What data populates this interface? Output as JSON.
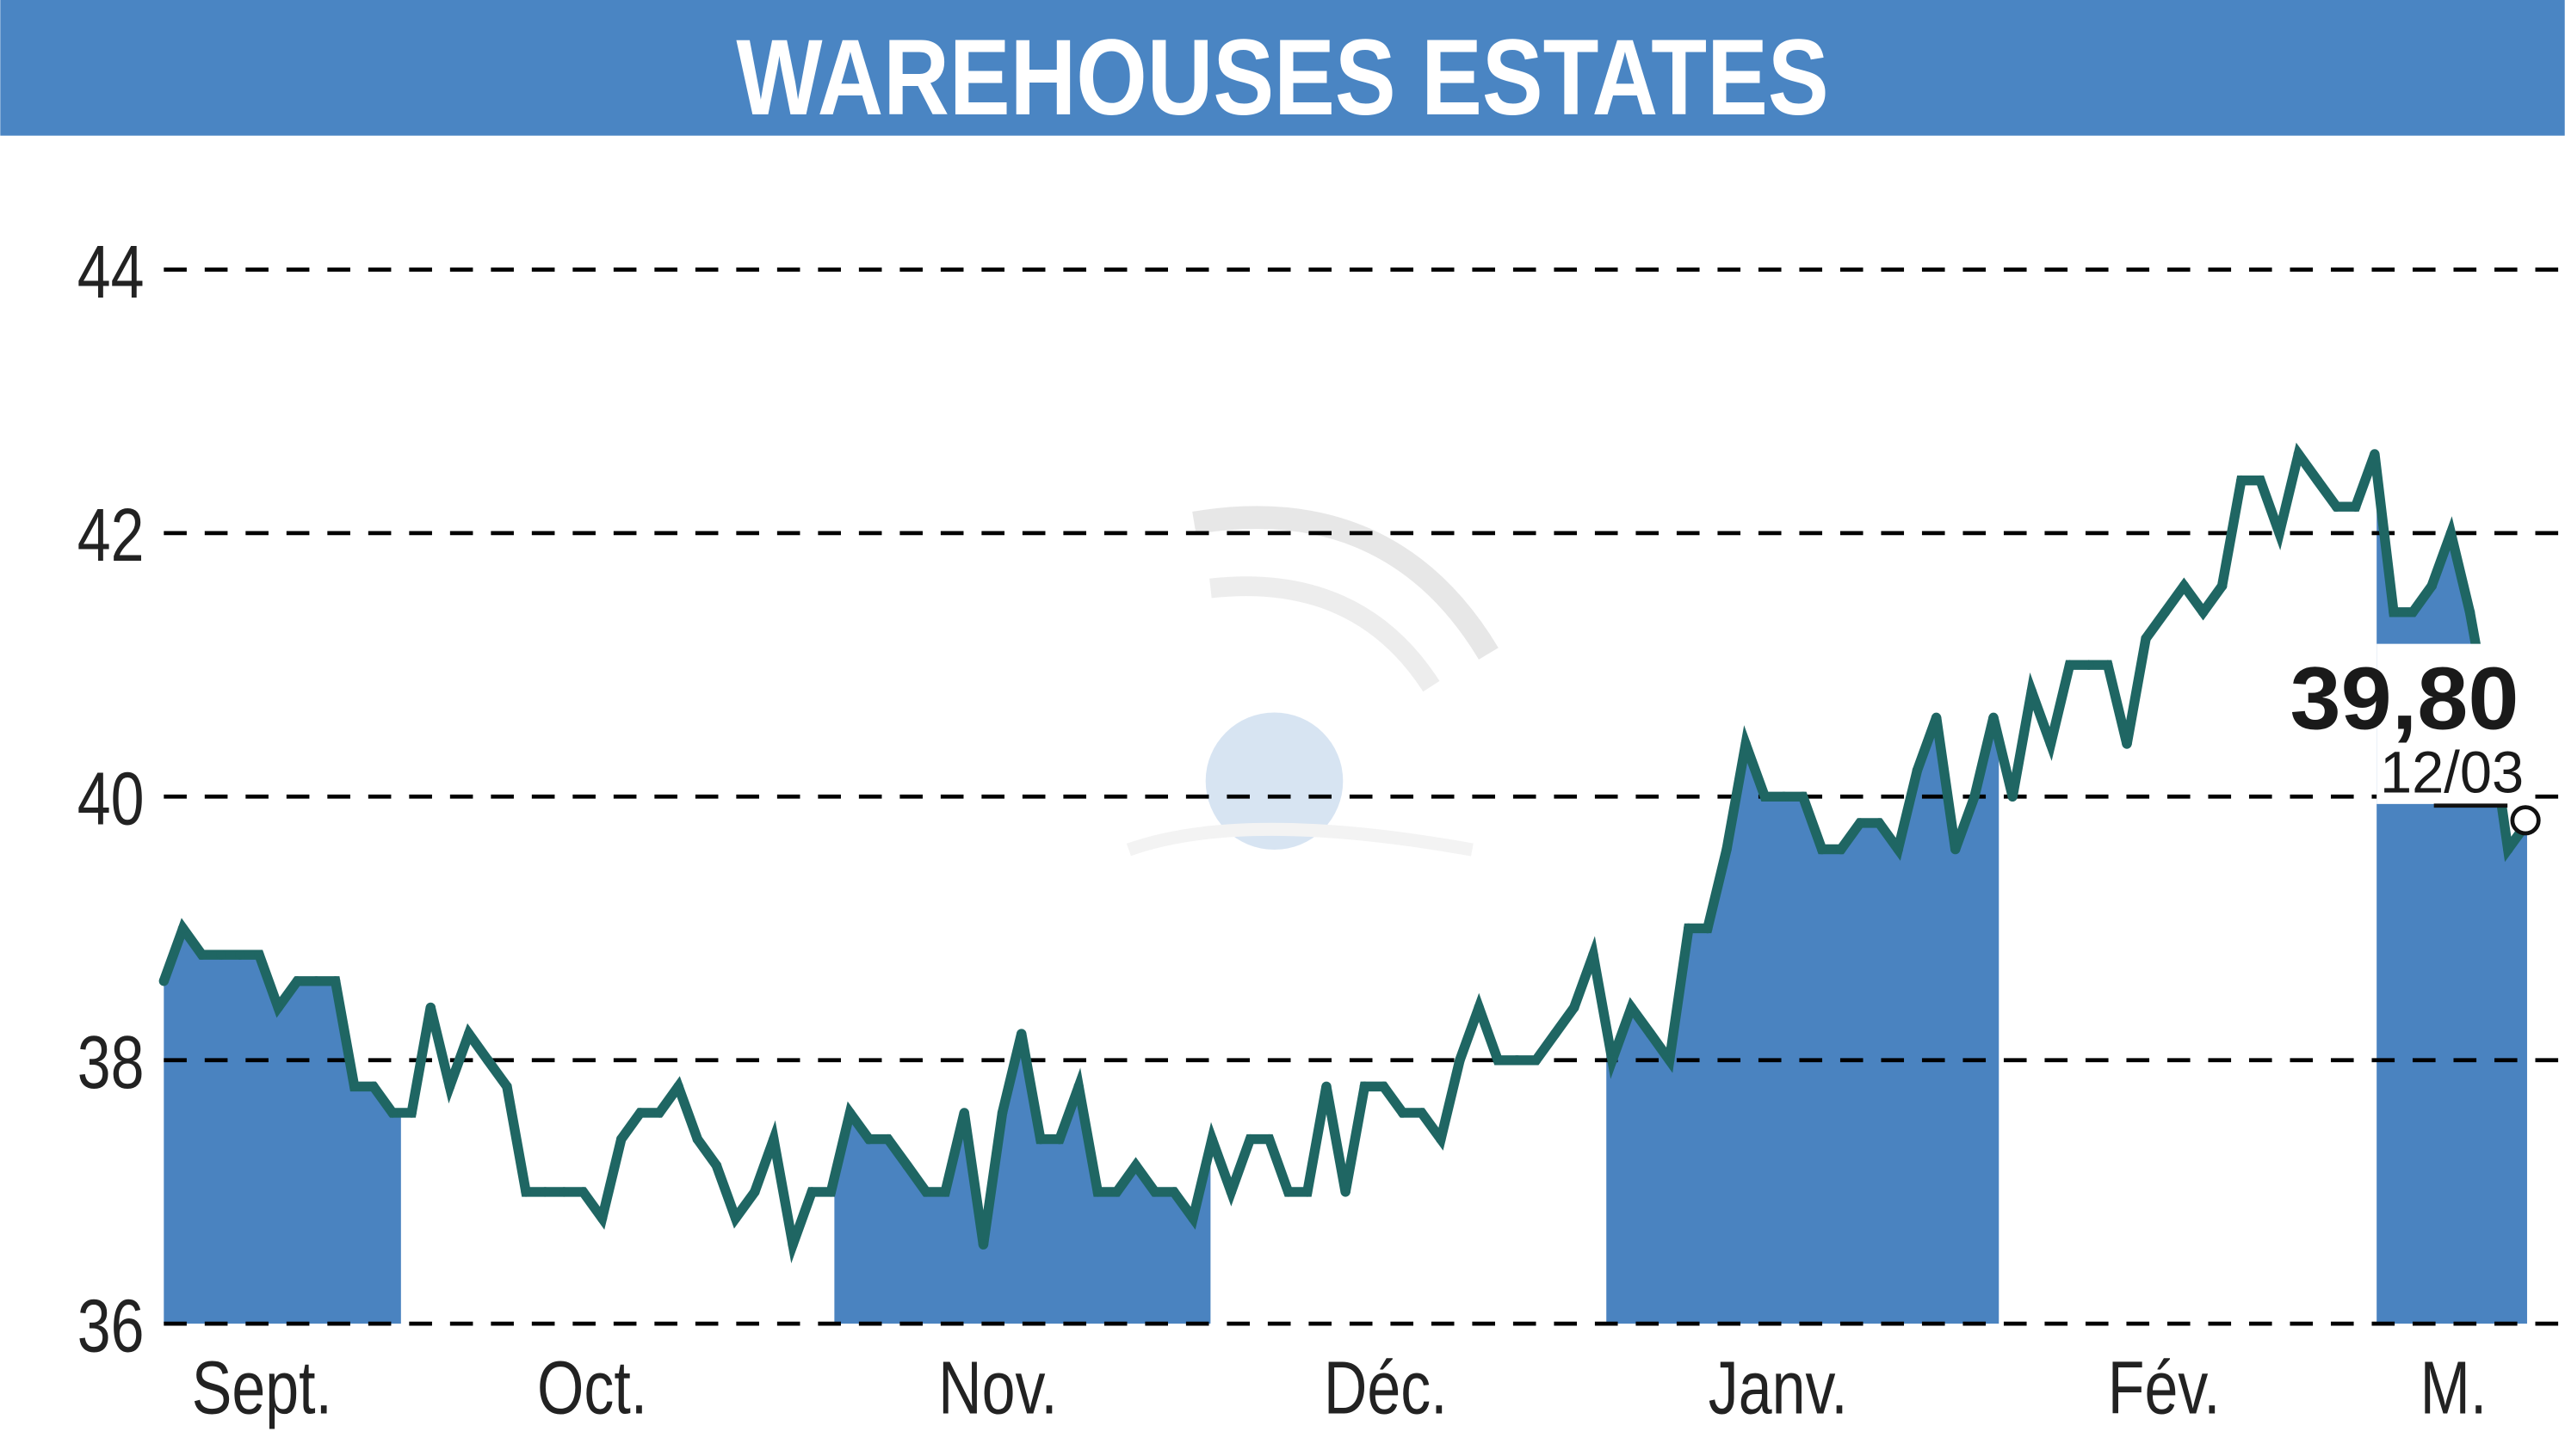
{
  "title": "WAREHOUSES ESTATES",
  "colors": {
    "header": "#4a85c3",
    "fill": "#4a83c0",
    "line": "#1f6663",
    "grid": "#000000"
  },
  "chart_data": {
    "type": "line",
    "title": "WAREHOUSES ESTATES",
    "xlabel": "",
    "ylabel": "",
    "ylim": [
      36,
      44
    ],
    "yticks": [
      "36",
      "38",
      "40",
      "42",
      "44"
    ],
    "ytick_values": [
      36,
      38,
      40,
      42,
      44
    ],
    "grid": true,
    "months": [
      "Sept.",
      "Oct.",
      "Nov.",
      "Déc.",
      "Janv.",
      "Fév.",
      "M."
    ],
    "shaded_months": [
      "Sept.",
      "Nov.",
      "Janv.",
      "M."
    ],
    "values": [
      38.6,
      39.0,
      38.8,
      38.8,
      38.8,
      38.8,
      38.4,
      38.6,
      38.6,
      38.6,
      37.8,
      37.8,
      37.6,
      37.6,
      38.4,
      37.8,
      38.2,
      38.0,
      37.8,
      37.0,
      37.0,
      37.0,
      37.0,
      36.8,
      37.4,
      37.6,
      37.6,
      37.8,
      37.4,
      37.2,
      36.8,
      37.0,
      37.4,
      36.6,
      37.0,
      37.0,
      37.6,
      37.4,
      37.4,
      37.2,
      37.0,
      37.0,
      37.6,
      36.6,
      37.6,
      38.2,
      37.4,
      37.4,
      37.8,
      37.0,
      37.0,
      37.2,
      37.0,
      37.0,
      36.8,
      37.4,
      37.0,
      37.4,
      37.4,
      37.0,
      37.0,
      37.8,
      37.0,
      37.8,
      37.8,
      37.6,
      37.6,
      37.4,
      38.0,
      38.4,
      38.0,
      38.0,
      38.0,
      38.2,
      38.4,
      38.8,
      38.0,
      38.4,
      38.2,
      38.0,
      39.0,
      39.0,
      39.6,
      40.4,
      40.0,
      40.0,
      40.0,
      39.6,
      39.6,
      39.8,
      39.8,
      39.6,
      40.2,
      40.6,
      39.6,
      40.0,
      40.6,
      40.0,
      40.8,
      40.4,
      41.0,
      41.0,
      41.0,
      40.4,
      41.2,
      41.4,
      41.6,
      41.4,
      41.6,
      42.4,
      42.4,
      42.0,
      42.6,
      42.4,
      42.2,
      42.2,
      42.6,
      41.4,
      41.4,
      41.6,
      42.0,
      41.4,
      40.6,
      39.6,
      39.8
    ],
    "last_value": "39,80",
    "last_date": "12/03"
  }
}
